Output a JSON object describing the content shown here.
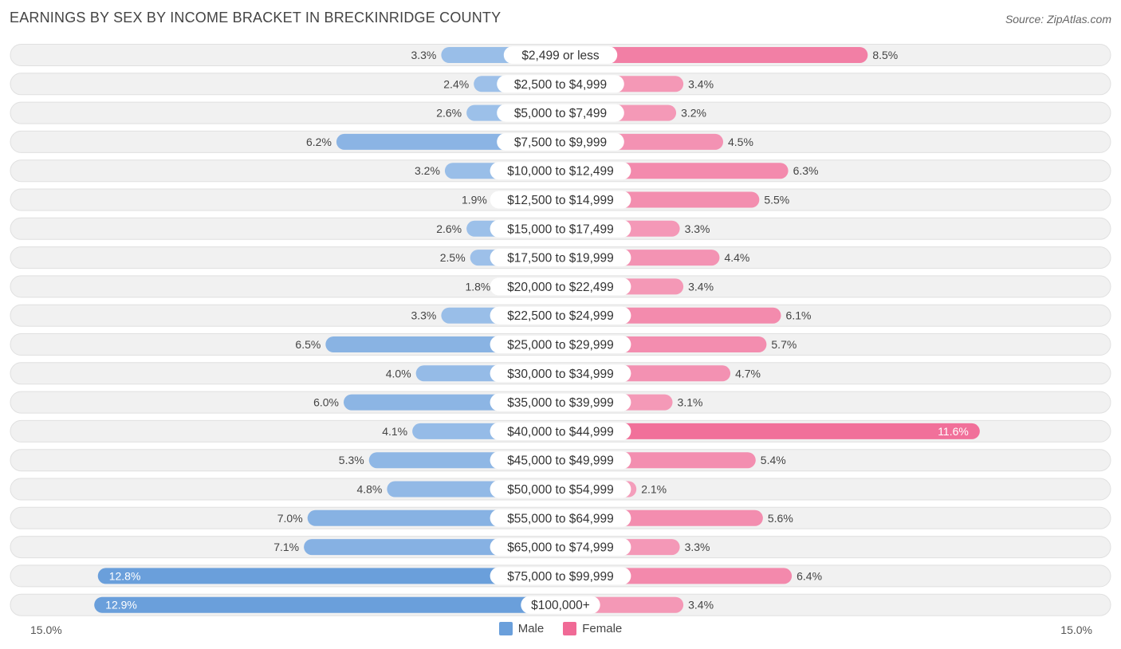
{
  "header": {
    "title": "EARNINGS BY SEX BY INCOME BRACKET IN BRECKINRIDGE COUNTY",
    "source": "Source: ZipAtlas.com"
  },
  "colors": {
    "male_light": "#a9c8ec",
    "male_dark": "#6a9fdb",
    "female_light": "#f5a8c2",
    "female_dark": "#f06a96",
    "row_bg": "#f1f1f1",
    "row_border": "#e0e0e0"
  },
  "chart_data": {
    "type": "bar",
    "orientation": "horizontal-diverging",
    "title": "EARNINGS BY SEX BY INCOME BRACKET IN BRECKINRIDGE COUNTY",
    "xlim": [
      -15.0,
      15.0
    ],
    "axis_left_label": "15.0%",
    "axis_right_label": "15.0%",
    "legend": [
      "Male",
      "Female"
    ],
    "categories": [
      "$2,499 or less",
      "$2,500 to $4,999",
      "$5,000 to $7,499",
      "$7,500 to $9,999",
      "$10,000 to $12,499",
      "$12,500 to $14,999",
      "$15,000 to $17,499",
      "$17,500 to $19,999",
      "$20,000 to $22,499",
      "$22,500 to $24,999",
      "$25,000 to $29,999",
      "$30,000 to $34,999",
      "$35,000 to $39,999",
      "$40,000 to $44,999",
      "$45,000 to $49,999",
      "$50,000 to $54,999",
      "$55,000 to $64,999",
      "$65,000 to $74,999",
      "$75,000 to $99,999",
      "$100,000+"
    ],
    "series": [
      {
        "name": "Male",
        "values": [
          3.3,
          2.4,
          2.6,
          6.2,
          3.2,
          1.9,
          2.6,
          2.5,
          1.8,
          3.3,
          6.5,
          4.0,
          6.0,
          4.1,
          5.3,
          4.8,
          7.0,
          7.1,
          12.8,
          12.9
        ],
        "labels": [
          "3.3%",
          "2.4%",
          "2.6%",
          "6.2%",
          "3.2%",
          "1.9%",
          "2.6%",
          "2.5%",
          "1.8%",
          "3.3%",
          "6.5%",
          "4.0%",
          "6.0%",
          "4.1%",
          "5.3%",
          "4.8%",
          "7.0%",
          "7.1%",
          "12.8%",
          "12.9%"
        ]
      },
      {
        "name": "Female",
        "values": [
          8.5,
          3.4,
          3.2,
          4.5,
          6.3,
          5.5,
          3.3,
          4.4,
          3.4,
          6.1,
          5.7,
          4.7,
          3.1,
          11.6,
          5.4,
          2.1,
          5.6,
          3.3,
          6.4,
          3.4
        ],
        "labels": [
          "8.5%",
          "3.4%",
          "3.2%",
          "4.5%",
          "6.3%",
          "5.5%",
          "3.3%",
          "4.4%",
          "3.4%",
          "6.1%",
          "5.7%",
          "4.7%",
          "3.1%",
          "11.6%",
          "5.4%",
          "2.1%",
          "5.6%",
          "3.3%",
          "6.4%",
          "3.4%"
        ]
      }
    ]
  }
}
